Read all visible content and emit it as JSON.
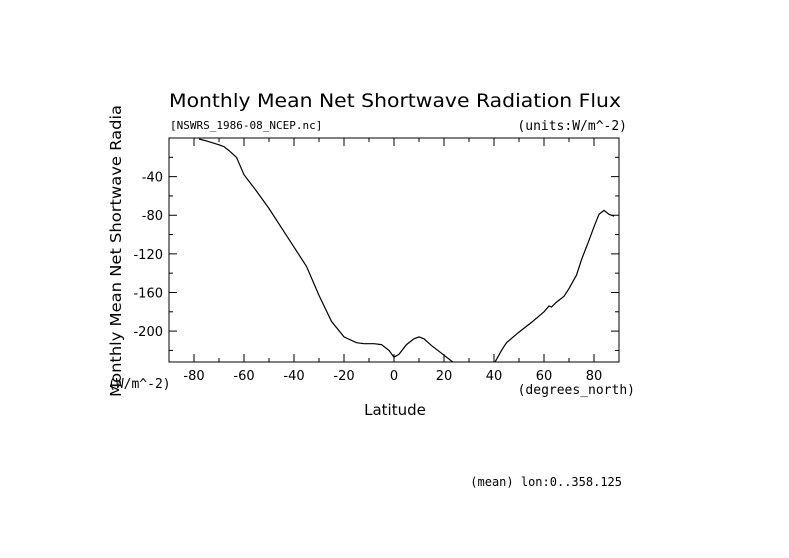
{
  "chart_data": {
    "type": "line",
    "title": "Monthly Mean Net Shortwave Radiation Flux",
    "subtitle_left": "[NSWRS_1986-08_NCEP.nc]",
    "subtitle_right": "(units:W/m^-2)",
    "xlabel": "Latitude",
    "x_units": "(degrees_north)",
    "ylabel": "Monthly Mean Net Shortwave Radia",
    "y_units": "(W/m^-2)",
    "footer": "(mean) lon:0..358.125",
    "xlim": [
      -90,
      90
    ],
    "ylim": [
      -232,
      0
    ],
    "x_ticks": [
      -80,
      -60,
      -40,
      -20,
      0,
      20,
      40,
      60,
      80
    ],
    "y_ticks": [
      -40,
      -80,
      -120,
      -160,
      -200
    ],
    "grid": false,
    "series": [
      {
        "x": [
          -78,
          -75,
          -70,
          -68,
          -66,
          -63,
          -60,
          -55,
          -50,
          -45,
          -40,
          -35,
          -30,
          -25,
          -20,
          -15,
          -12,
          -10,
          -8,
          -5,
          -2,
          0,
          2,
          5,
          8,
          10,
          12,
          15,
          20,
          25,
          30,
          33,
          35,
          37,
          40,
          43,
          45,
          50,
          55,
          60,
          62,
          63,
          65,
          68,
          70,
          73,
          75,
          78,
          80,
          82,
          84,
          86,
          88
        ],
        "y": [
          -1,
          -3,
          -7,
          -9,
          -13,
          -20,
          -38,
          -55,
          -73,
          -93,
          -113,
          -133,
          -163,
          -190,
          -206,
          -212,
          -213,
          -213,
          -213,
          -214,
          -220,
          -227,
          -224,
          -214,
          -208,
          -206,
          -208,
          -215,
          -225,
          -235,
          -243,
          -248,
          -250,
          -245,
          -234,
          -220,
          -212,
          -201,
          -191,
          -180,
          -174,
          -175,
          -170,
          -164,
          -156,
          -142,
          -126,
          -106,
          -92,
          -79,
          -75,
          -79,
          -81
        ]
      }
    ]
  }
}
